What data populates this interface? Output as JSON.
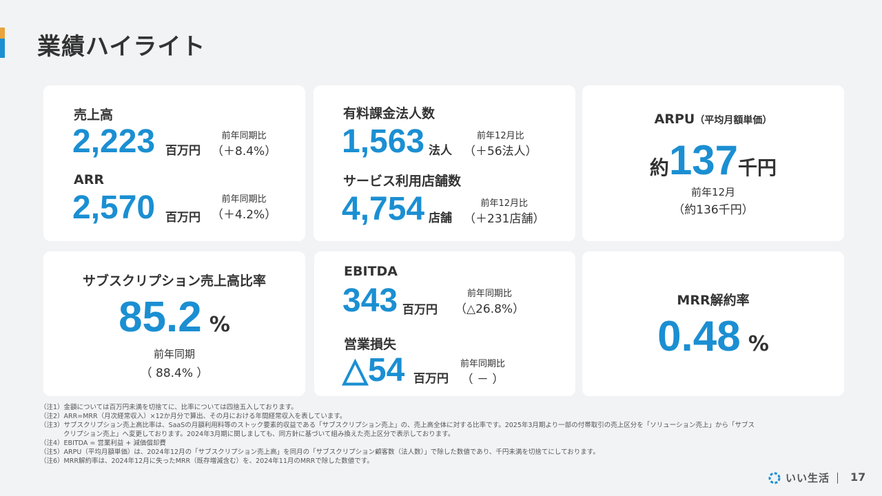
{
  "slide": {
    "title": "業績ハイライト",
    "page": "17"
  },
  "revenue": {
    "label": "売上高",
    "value": "2,223",
    "unit": "百万円",
    "compare_label": "前年同期比",
    "compare_value": "（＋8.4%）"
  },
  "arr": {
    "label": "ARR",
    "value": "2,570",
    "unit": "百万円",
    "compare_label": "前年同期比",
    "compare_value": "（＋4.2%）"
  },
  "paying_corporations": {
    "label": "有料課金法人数",
    "value": "1,563",
    "unit": "法人",
    "compare_label": "前年12月比",
    "compare_value": "（＋56法人）"
  },
  "stores": {
    "label": "サービス利用店舗数",
    "value": "4,754",
    "unit": "店舗",
    "compare_label": "前年12月比",
    "compare_value": "（＋231店舗）"
  },
  "arpu": {
    "label": "ARPU",
    "label_sub": "（平均月額単価）",
    "prefix": "約",
    "value": "137",
    "unit": "千円",
    "prev_label": "前年12月",
    "prev_value": "（約136千円）"
  },
  "subscription_ratio": {
    "label": "サブスクリプション売上高比率",
    "value": "85.2",
    "unit": "%",
    "prev_label": "前年同期",
    "prev_value": "（ 88.4% ）"
  },
  "ebitda": {
    "label": "EBITDA",
    "value": "343",
    "unit": "百万円",
    "compare_label": "前年同期比",
    "compare_value": "（△26.8%）"
  },
  "operating_loss": {
    "label": "営業損失",
    "value": "△54",
    "unit": "百万円",
    "compare_label": "前年同期比",
    "compare_value": "（ － ）"
  },
  "mrr_churn": {
    "label": "MRR解約率",
    "value": "0.48",
    "unit": "%"
  },
  "notes": [
    "（注1）金額については百万円未満を切捨てに、比率については四捨五入しております。",
    "（注2）ARR=MRR（月次経常収入）×12か月分で算出、その月における年間経常収入を表しています。",
    "（注3）サブスクリプション売上高比率は、SaaSの月額利用料等のストック要素的収益である「サブスクリプション売上」の、売上高全体に対する比率です。2025年3月期より一部の付帯取引の売上区分を「ソリューション売上」から「サブス",
    "クリプション売上」へ変更しております。2024年3月期に関しましても、同方針に基づいて組み換えた売上区分で表示しております。",
    "（注4）EBITDA = 営業利益 + 減価償却費",
    "（注5）ARPU（平均月額単価）は、2024年12月の「サブスクリプション売上高」を同月の「サブスクリプション顧客数（法人数）」で除した数値であり、千円未満を切捨てにしております。",
    "（注6）MRR解約率は、2024年12月に失ったMRR（既存増減含む）を、2024年11月のMRRで除した数値です。"
  ],
  "brand": {
    "logo_text": "いい生活",
    "accent_blue": "#1b8fd2",
    "accent_orange": "#e8a33d"
  }
}
